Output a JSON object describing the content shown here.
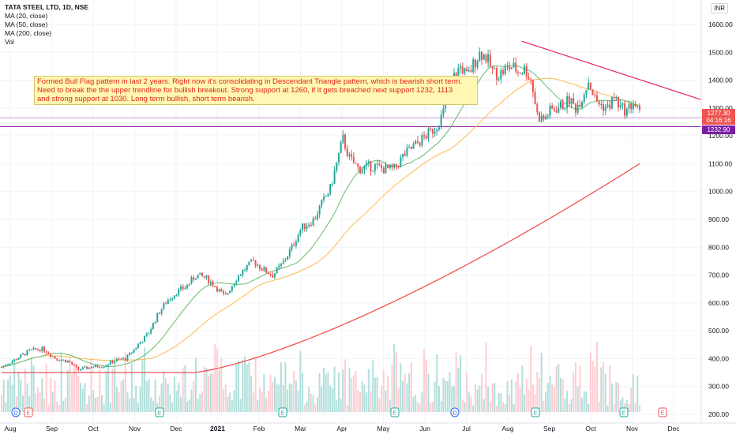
{
  "header": {
    "symbol_line": "TATA STEEL LTD, 1D, NSE",
    "indicators": [
      "MA (20, close)",
      "MA (50, close)",
      "MA (200, close)",
      "Vol"
    ],
    "currency": "INR"
  },
  "annotation": {
    "lines": [
      "Formed Bull Flag pattern in last 2 years. Right now it's consolidating in Descendant Triangle pattern, which is bearish short term.",
      "Need to break the the upper trendline for bullish breakout. Strong support at 1260, if it gets breached next support 1232, 1113",
      "and strong support at 1030.  Long term bullish, short term bearish."
    ]
  },
  "price_labels": {
    "last_price": "1277.30",
    "countdown": "04:16:16",
    "support_level": "1232.90"
  },
  "colors": {
    "up": "#26a69a",
    "down": "#ef5350",
    "ma20": "#66bb6a",
    "ma50": "#ffb74d",
    "ma200": "#ef5350",
    "trendline": "#e91e63",
    "support_line": "#9c27b0",
    "vol_up": "#b2dfdb",
    "vol_down": "#ffcdd2"
  },
  "chart_data": {
    "type": "candlestick",
    "y_axis": {
      "ticks": [
        200,
        300,
        400,
        500,
        600,
        700,
        800,
        900,
        1000,
        1100,
        1200,
        1300,
        1400,
        1500,
        1600
      ],
      "tick_labels": [
        "200.00",
        "300.00",
        "400.00",
        "500.00",
        "600.00",
        "700.00",
        "800.00",
        "900.00",
        "1000.00",
        "1100.00",
        "1200.00",
        "1300.00",
        "1400.00",
        "1500.00",
        "1600.00"
      ],
      "range": [
        170,
        1650
      ]
    },
    "x_axis": {
      "labels": [
        "Aug",
        "Sep",
        "Oct",
        "Nov",
        "Dec",
        "2021",
        "Feb",
        "Mar",
        "Apr",
        "May",
        "Jun",
        "Jul",
        "Aug",
        "Sep",
        "Oct",
        "Nov",
        "Dec"
      ],
      "bold": [
        "2021"
      ]
    },
    "price_path": [
      [
        0,
        370
      ],
      [
        0.02,
        395
      ],
      [
        0.045,
        430
      ],
      [
        0.065,
        435
      ],
      [
        0.085,
        400
      ],
      [
        0.105,
        390
      ],
      [
        0.12,
        360
      ],
      [
        0.14,
        370
      ],
      [
        0.16,
        375
      ],
      [
        0.18,
        395
      ],
      [
        0.195,
        400
      ],
      [
        0.21,
        440
      ],
      [
        0.23,
        490
      ],
      [
        0.245,
        560
      ],
      [
        0.26,
        610
      ],
      [
        0.275,
        640
      ],
      [
        0.29,
        660
      ],
      [
        0.305,
        700
      ],
      [
        0.32,
        690
      ],
      [
        0.335,
        660
      ],
      [
        0.35,
        620
      ],
      [
        0.365,
        680
      ],
      [
        0.38,
        720
      ],
      [
        0.395,
        750
      ],
      [
        0.41,
        720
      ],
      [
        0.425,
        700
      ],
      [
        0.44,
        740
      ],
      [
        0.455,
        800
      ],
      [
        0.47,
        870
      ],
      [
        0.49,
        900
      ],
      [
        0.5,
        950
      ],
      [
        0.515,
        1010
      ],
      [
        0.525,
        1100
      ],
      [
        0.535,
        1190
      ],
      [
        0.545,
        1120
      ],
      [
        0.56,
        1080
      ],
      [
        0.575,
        1090
      ],
      [
        0.585,
        1090
      ],
      [
        0.6,
        1080
      ],
      [
        0.615,
        1080
      ],
      [
        0.63,
        1130
      ],
      [
        0.645,
        1160
      ],
      [
        0.66,
        1190
      ],
      [
        0.68,
        1230
      ],
      [
        0.69,
        1270
      ],
      [
        0.7,
        1340
      ],
      [
        0.71,
        1420
      ],
      [
        0.72,
        1450
      ],
      [
        0.73,
        1410
      ],
      [
        0.74,
        1460
      ],
      [
        0.75,
        1500
      ],
      [
        0.76,
        1480
      ],
      [
        0.77,
        1430
      ],
      [
        0.78,
        1420
      ],
      [
        0.79,
        1440
      ],
      [
        0.8,
        1450
      ],
      [
        0.81,
        1430
      ],
      [
        0.82,
        1440
      ],
      [
        0.83,
        1400
      ],
      [
        0.84,
        1270
      ],
      [
        0.85,
        1260
      ],
      [
        0.86,
        1290
      ],
      [
        0.87,
        1300
      ],
      [
        0.88,
        1310
      ],
      [
        0.89,
        1330
      ],
      [
        0.9,
        1300
      ],
      [
        0.91,
        1340
      ],
      [
        0.92,
        1400
      ],
      [
        0.93,
        1330
      ],
      [
        0.94,
        1310
      ],
      [
        0.95,
        1300
      ],
      [
        0.96,
        1340
      ],
      [
        0.97,
        1300
      ],
      [
        0.98,
        1290
      ],
      [
        0.99,
        1320
      ],
      [
        1.0,
        1277
      ]
    ],
    "trendline": {
      "start": 1540,
      "end": 1330
    },
    "support_lines": [
      1232.9,
      1265
    ],
    "series": [
      {
        "name": "MA (20, close)"
      },
      {
        "name": "MA (50, close)"
      },
      {
        "name": "MA (200, close)",
        "start_value": 350,
        "end_value": 1100
      },
      {
        "name": "Vol"
      }
    ],
    "event_markers": [
      {
        "label": "D",
        "x_index": 0,
        "color": "#2962ff"
      },
      {
        "label": "E",
        "x_index": 1,
        "color": "#ef5350"
      },
      {
        "label": "E",
        "x_index": 2,
        "color": "#26a69a"
      },
      {
        "label": "E",
        "x_index": 3,
        "color": "#26a69a"
      },
      {
        "label": "E",
        "x_index": 4,
        "color": "#26a69a"
      },
      {
        "label": "D",
        "x_index": 5,
        "color": "#2962ff"
      },
      {
        "label": "E",
        "x_index": 6,
        "color": "#26a69a"
      },
      {
        "label": "E",
        "x_index": 7,
        "color": "#26a69a"
      },
      {
        "label": "E",
        "x_index": 8,
        "color": "#ef5350"
      }
    ]
  }
}
